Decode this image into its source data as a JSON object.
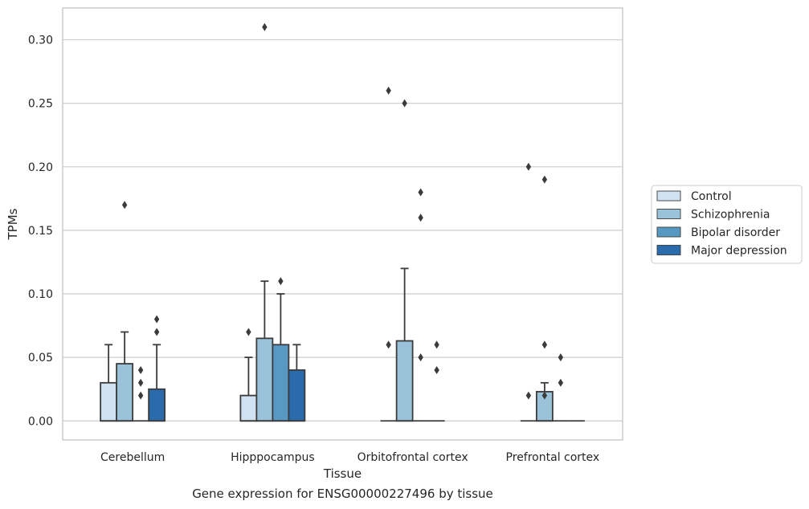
{
  "caption": "Gene expression for ENSG00000227496 by tissue",
  "chart_data": {
    "type": "box",
    "xlabel": "Tissue",
    "ylabel": "TPMs",
    "ylim": [
      -0.015,
      0.325
    ],
    "yticks": [
      0.0,
      0.05,
      0.1,
      0.15,
      0.2,
      0.25,
      0.3
    ],
    "ytick_labels": [
      "0.00",
      "0.05",
      "0.10",
      "0.15",
      "0.20",
      "0.25",
      "0.30"
    ],
    "grid": "horizontal",
    "legend_position": "right",
    "categories": [
      "Cerebellum",
      "Hipppocampus",
      "Orbitofrontal cortex",
      "Prefrontal cortex"
    ],
    "series": [
      {
        "name": "Control",
        "color": "#d0e1f2",
        "boxes": [
          {
            "q1": 0.0,
            "median": 0.0,
            "q3": 0.03,
            "whislo": 0.0,
            "whishi": 0.06,
            "fliers": []
          },
          {
            "q1": 0.0,
            "median": 0.0,
            "q3": 0.02,
            "whislo": 0.0,
            "whishi": 0.05,
            "fliers": [
              0.07
            ]
          },
          {
            "q1": 0.0,
            "median": 0.0,
            "q3": 0.0,
            "whislo": 0.0,
            "whishi": 0.0,
            "fliers": [
              0.06,
              0.26
            ]
          },
          {
            "q1": 0.0,
            "median": 0.0,
            "q3": 0.0,
            "whislo": 0.0,
            "whishi": 0.0,
            "fliers": [
              0.02,
              0.2
            ]
          }
        ]
      },
      {
        "name": "Schizophrenia",
        "color": "#9ac3da",
        "boxes": [
          {
            "q1": 0.0,
            "median": 0.0,
            "q3": 0.045,
            "whislo": 0.0,
            "whishi": 0.07,
            "fliers": [
              0.17
            ]
          },
          {
            "q1": 0.0,
            "median": 0.0,
            "q3": 0.065,
            "whislo": 0.0,
            "whishi": 0.11,
            "fliers": [
              0.31
            ]
          },
          {
            "q1": 0.0,
            "median": 0.0,
            "q3": 0.063,
            "whislo": 0.0,
            "whishi": 0.12,
            "fliers": [
              0.25
            ]
          },
          {
            "q1": 0.0,
            "median": 0.0,
            "q3": 0.023,
            "whislo": 0.0,
            "whishi": 0.03,
            "fliers": [
              0.02,
              0.06,
              0.19
            ]
          }
        ]
      },
      {
        "name": "Bipolar disorder",
        "color": "#5899c3",
        "boxes": [
          {
            "q1": 0.0,
            "median": 0.0,
            "q3": 0.0,
            "whislo": 0.0,
            "whishi": 0.0,
            "fliers": [
              0.02,
              0.03,
              0.04
            ]
          },
          {
            "q1": 0.0,
            "median": 0.0,
            "q3": 0.06,
            "whislo": 0.0,
            "whishi": 0.1,
            "fliers": [
              0.11
            ]
          },
          {
            "q1": 0.0,
            "median": 0.0,
            "q3": 0.0,
            "whislo": 0.0,
            "whishi": 0.0,
            "fliers": [
              0.05,
              0.16,
              0.18
            ]
          },
          {
            "q1": 0.0,
            "median": 0.0,
            "q3": 0.0,
            "whislo": 0.0,
            "whishi": 0.0,
            "fliers": [
              0.03,
              0.05
            ]
          }
        ]
      },
      {
        "name": "Major depression",
        "color": "#2a6bac",
        "boxes": [
          {
            "q1": 0.0,
            "median": 0.0,
            "q3": 0.025,
            "whislo": 0.0,
            "whishi": 0.06,
            "fliers": [
              0.07,
              0.08
            ]
          },
          {
            "q1": 0.0,
            "median": 0.0,
            "q3": 0.04,
            "whislo": 0.0,
            "whishi": 0.06,
            "fliers": []
          },
          {
            "q1": 0.0,
            "median": 0.0,
            "q3": 0.0,
            "whislo": 0.0,
            "whishi": 0.0,
            "fliers": [
              0.04,
              0.06
            ]
          },
          {
            "q1": 0.0,
            "median": 0.0,
            "q3": 0.0,
            "whislo": 0.0,
            "whishi": 0.0,
            "fliers": []
          }
        ]
      }
    ]
  }
}
